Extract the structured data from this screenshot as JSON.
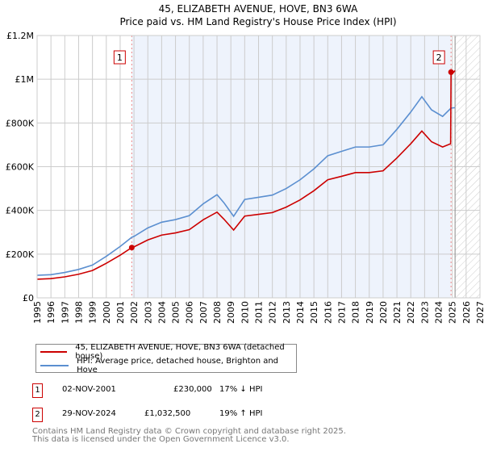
{
  "title": "45, ELIZABETH AVENUE, HOVE, BN3 6WA",
  "subtitle": "Price paid vs. HM Land Registry's House Price Index (HPI)",
  "chart_data": {
    "type": "line",
    "xlim": [
      1995,
      2027
    ],
    "ylim": [
      0,
      1200000
    ],
    "yticks": [
      {
        "v": 0,
        "l": "£0"
      },
      {
        "v": 200000,
        "l": "£200K"
      },
      {
        "v": 400000,
        "l": "£400K"
      },
      {
        "v": 600000,
        "l": "£600K"
      },
      {
        "v": 800000,
        "l": "£800K"
      },
      {
        "v": 1000000,
        "l": "£1M"
      },
      {
        "v": 1200000,
        "l": "£1.2M"
      }
    ],
    "xticks": [
      "1995",
      "1996",
      "1997",
      "1998",
      "1999",
      "2000",
      "2001",
      "2002",
      "2003",
      "2004",
      "2005",
      "2006",
      "2007",
      "2008",
      "2009",
      "2010",
      "2011",
      "2012",
      "2013",
      "2014",
      "2015",
      "2016",
      "2017",
      "2018",
      "2019",
      "2020",
      "2021",
      "2022",
      "2023",
      "2024",
      "2025",
      "2026",
      "2027"
    ],
    "grid": true,
    "future_hatch_from": 2025.2,
    "series": [
      {
        "name": "45, ELIZABETH AVENUE, HOVE, BN3 6WA (detached house)",
        "color": "#cc0000",
        "x": [
          1995,
          1996,
          1997,
          1998,
          1999,
          2000,
          2001,
          2001.84,
          2002,
          2003,
          2004,
          2005,
          2006,
          2007,
          2008,
          2008.5,
          2009.2,
          2010,
          2011,
          2012,
          2013,
          2014,
          2015,
          2016,
          2017,
          2018,
          2019,
          2020,
          2021,
          2022,
          2022.8,
          2023.5,
          2024.3,
          2024.88,
          2024.91,
          2025.0,
          2025.2
        ],
        "y": [
          85000,
          88000,
          96000,
          108000,
          125000,
          158000,
          195000,
          230000,
          233000,
          265000,
          287000,
          297000,
          312000,
          357000,
          392000,
          360000,
          310000,
          374000,
          382000,
          390000,
          415000,
          448000,
          490000,
          540000,
          556000,
          573000,
          573000,
          581000,
          640000,
          705000,
          763000,
          714000,
          690000,
          705000,
          1032500,
          1025000,
          1040000
        ]
      },
      {
        "name": "HPI: Average price, detached house, Brighton and Hove",
        "color": "#5b8fd0",
        "x": [
          1995,
          1996,
          1997,
          1998,
          1999,
          2000,
          2001,
          2001.84,
          2002,
          2003,
          2004,
          2005,
          2006,
          2007,
          2008,
          2008.5,
          2009.2,
          2010,
          2011,
          2012,
          2013,
          2014,
          2015,
          2016,
          2017,
          2018,
          2019,
          2020,
          2021,
          2022,
          2022.8,
          2023.5,
          2024.3,
          2024.91,
          2025.2
        ],
        "y": [
          103000,
          106000,
          116000,
          130000,
          150000,
          190000,
          235000,
          277000,
          281000,
          320000,
          346000,
          358000,
          376000,
          430000,
          472000,
          435000,
          373000,
          450000,
          460000,
          470000,
          500000,
          540000,
          590000,
          650000,
          670000,
          690000,
          690000,
          700000,
          771000,
          850000,
          920000,
          860000,
          830000,
          868000,
          870000
        ]
      }
    ],
    "sales": [
      {
        "label": "1",
        "x": 2001.84,
        "y": 230000
      },
      {
        "label": "2",
        "x": 2024.91,
        "y": 1032500
      }
    ]
  },
  "legend": {
    "items": [
      "45, ELIZABETH AVENUE, HOVE, BN3 6WA (detached house)",
      "HPI: Average price, detached house, Brighton and Hove"
    ]
  },
  "sales_table": [
    {
      "num": "1",
      "date": "02-NOV-2001",
      "price": "£230,000",
      "hpi": "17% ↓ HPI"
    },
    {
      "num": "2",
      "date": "29-NOV-2024",
      "price": "£1,032,500",
      "hpi": "19% ↑ HPI"
    }
  ],
  "footer": {
    "line1": "Contains HM Land Registry data © Crown copyright and database right 2025.",
    "line2": "This data is licensed under the Open Government Licence v3.0."
  }
}
